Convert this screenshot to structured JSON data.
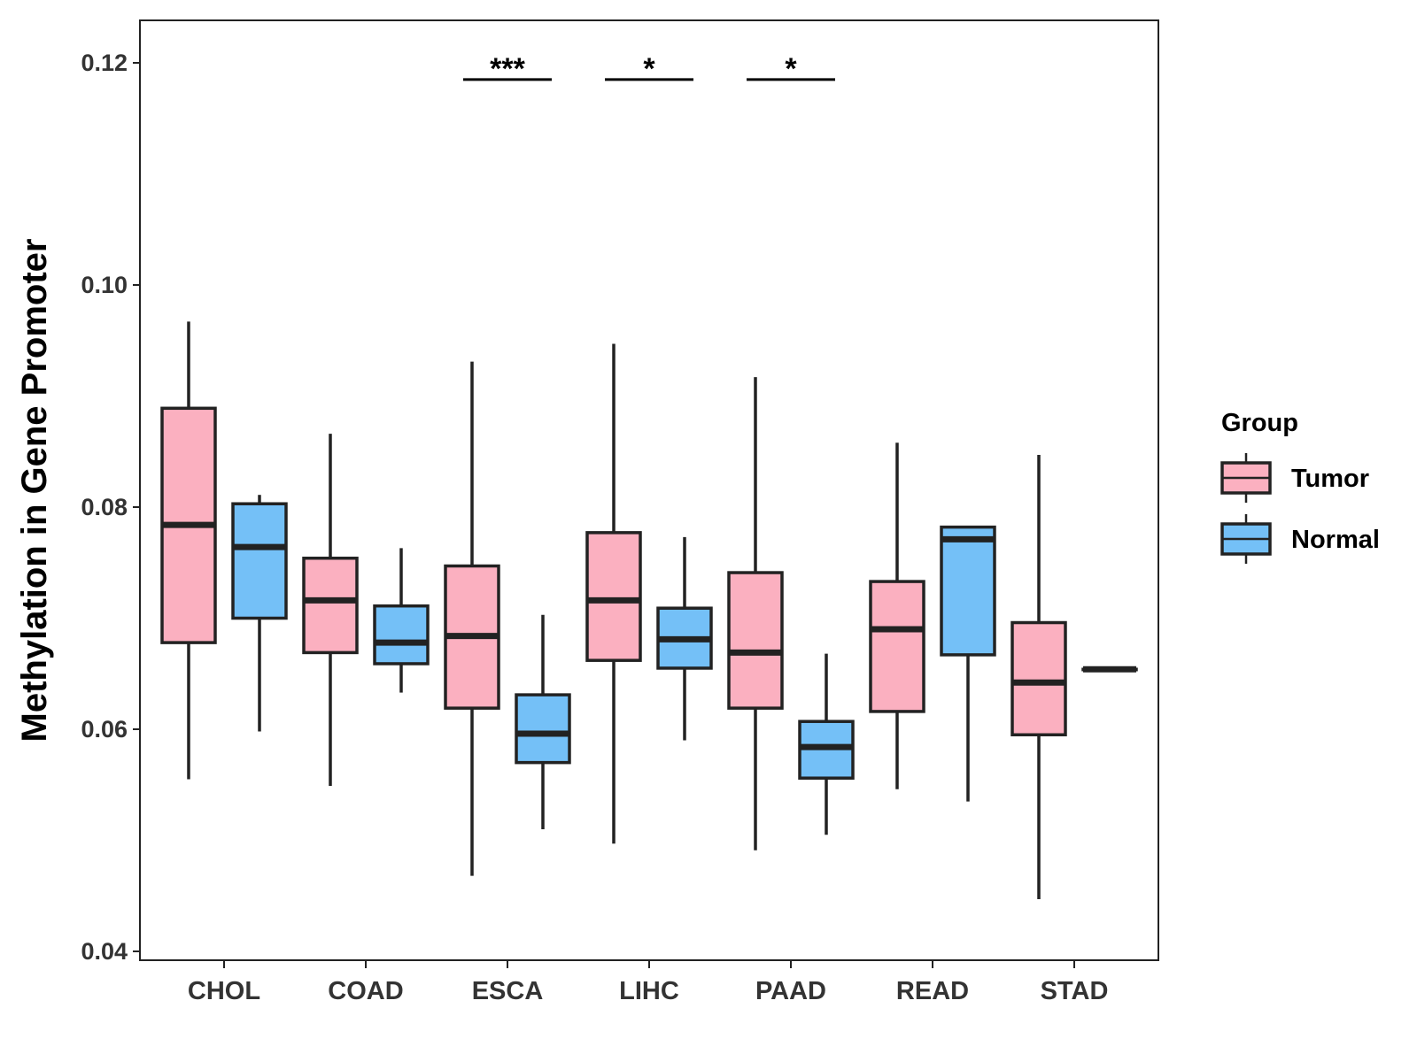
{
  "chart_data": {
    "type": "boxplot",
    "ylabel": "Methylation in Gene Promoter",
    "xlabel": "",
    "ylim": [
      0.04,
      0.124
    ],
    "yticks": [
      0.04,
      0.06,
      0.08,
      0.1,
      0.12
    ],
    "ytick_labels": [
      "0.04",
      "0.06",
      "0.08",
      "0.10",
      "0.12"
    ],
    "categories": [
      "CHOL",
      "COAD",
      "ESCA",
      "LIHC",
      "PAAD",
      "READ",
      "STAD"
    ],
    "legend": {
      "title": "Group",
      "position": "right",
      "items": [
        {
          "name": "Tumor",
          "color": "#FBB0C0"
        },
        {
          "name": "Normal",
          "color": "#74C0F7"
        }
      ]
    },
    "series": [
      {
        "name": "Tumor",
        "color": "#FBB0C0",
        "boxes": [
          {
            "category": "CHOL",
            "min": 0.0555,
            "q1": 0.0678,
            "median": 0.0784,
            "q3": 0.0889,
            "max": 0.0967
          },
          {
            "category": "COAD",
            "min": 0.0549,
            "q1": 0.0669,
            "median": 0.0716,
            "q3": 0.0754,
            "max": 0.0866
          },
          {
            "category": "ESCA",
            "min": 0.0468,
            "q1": 0.0619,
            "median": 0.0684,
            "q3": 0.0747,
            "max": 0.0931
          },
          {
            "category": "LIHC",
            "min": 0.0497,
            "q1": 0.0662,
            "median": 0.0716,
            "q3": 0.0777,
            "max": 0.0947
          },
          {
            "category": "PAAD",
            "min": 0.0491,
            "q1": 0.0619,
            "median": 0.0669,
            "q3": 0.0741,
            "max": 0.0917
          },
          {
            "category": "READ",
            "min": 0.0546,
            "q1": 0.0616,
            "median": 0.069,
            "q3": 0.0733,
            "max": 0.0858
          },
          {
            "category": "STAD",
            "min": 0.0447,
            "q1": 0.0595,
            "median": 0.0642,
            "q3": 0.0696,
            "max": 0.0847
          }
        ]
      },
      {
        "name": "Normal",
        "color": "#74C0F7",
        "boxes": [
          {
            "category": "CHOL",
            "min": 0.0598,
            "q1": 0.07,
            "median": 0.0764,
            "q3": 0.0803,
            "max": 0.0811
          },
          {
            "category": "COAD",
            "min": 0.0633,
            "q1": 0.0659,
            "median": 0.0678,
            "q3": 0.0711,
            "max": 0.0763
          },
          {
            "category": "ESCA",
            "min": 0.051,
            "q1": 0.057,
            "median": 0.0596,
            "q3": 0.0631,
            "max": 0.0703
          },
          {
            "category": "LIHC",
            "min": 0.059,
            "q1": 0.0655,
            "median": 0.0681,
            "q3": 0.0709,
            "max": 0.0773
          },
          {
            "category": "PAAD",
            "min": 0.0505,
            "q1": 0.0556,
            "median": 0.0584,
            "q3": 0.0607,
            "max": 0.0668
          },
          {
            "category": "READ",
            "min": 0.0535,
            "q1": 0.0667,
            "median": 0.0771,
            "q3": 0.0782,
            "max": 0.0782
          },
          {
            "category": "STAD",
            "min": 0.0654,
            "q1": 0.0654,
            "median": 0.0654,
            "q3": 0.0654,
            "max": 0.0654
          }
        ]
      }
    ],
    "annotations": [
      {
        "category": "ESCA",
        "label": "***",
        "y": 0.1185
      },
      {
        "category": "LIHC",
        "label": "*",
        "y": 0.1185
      },
      {
        "category": "PAAD",
        "label": "*",
        "y": 0.1185
      }
    ],
    "grid": false
  }
}
